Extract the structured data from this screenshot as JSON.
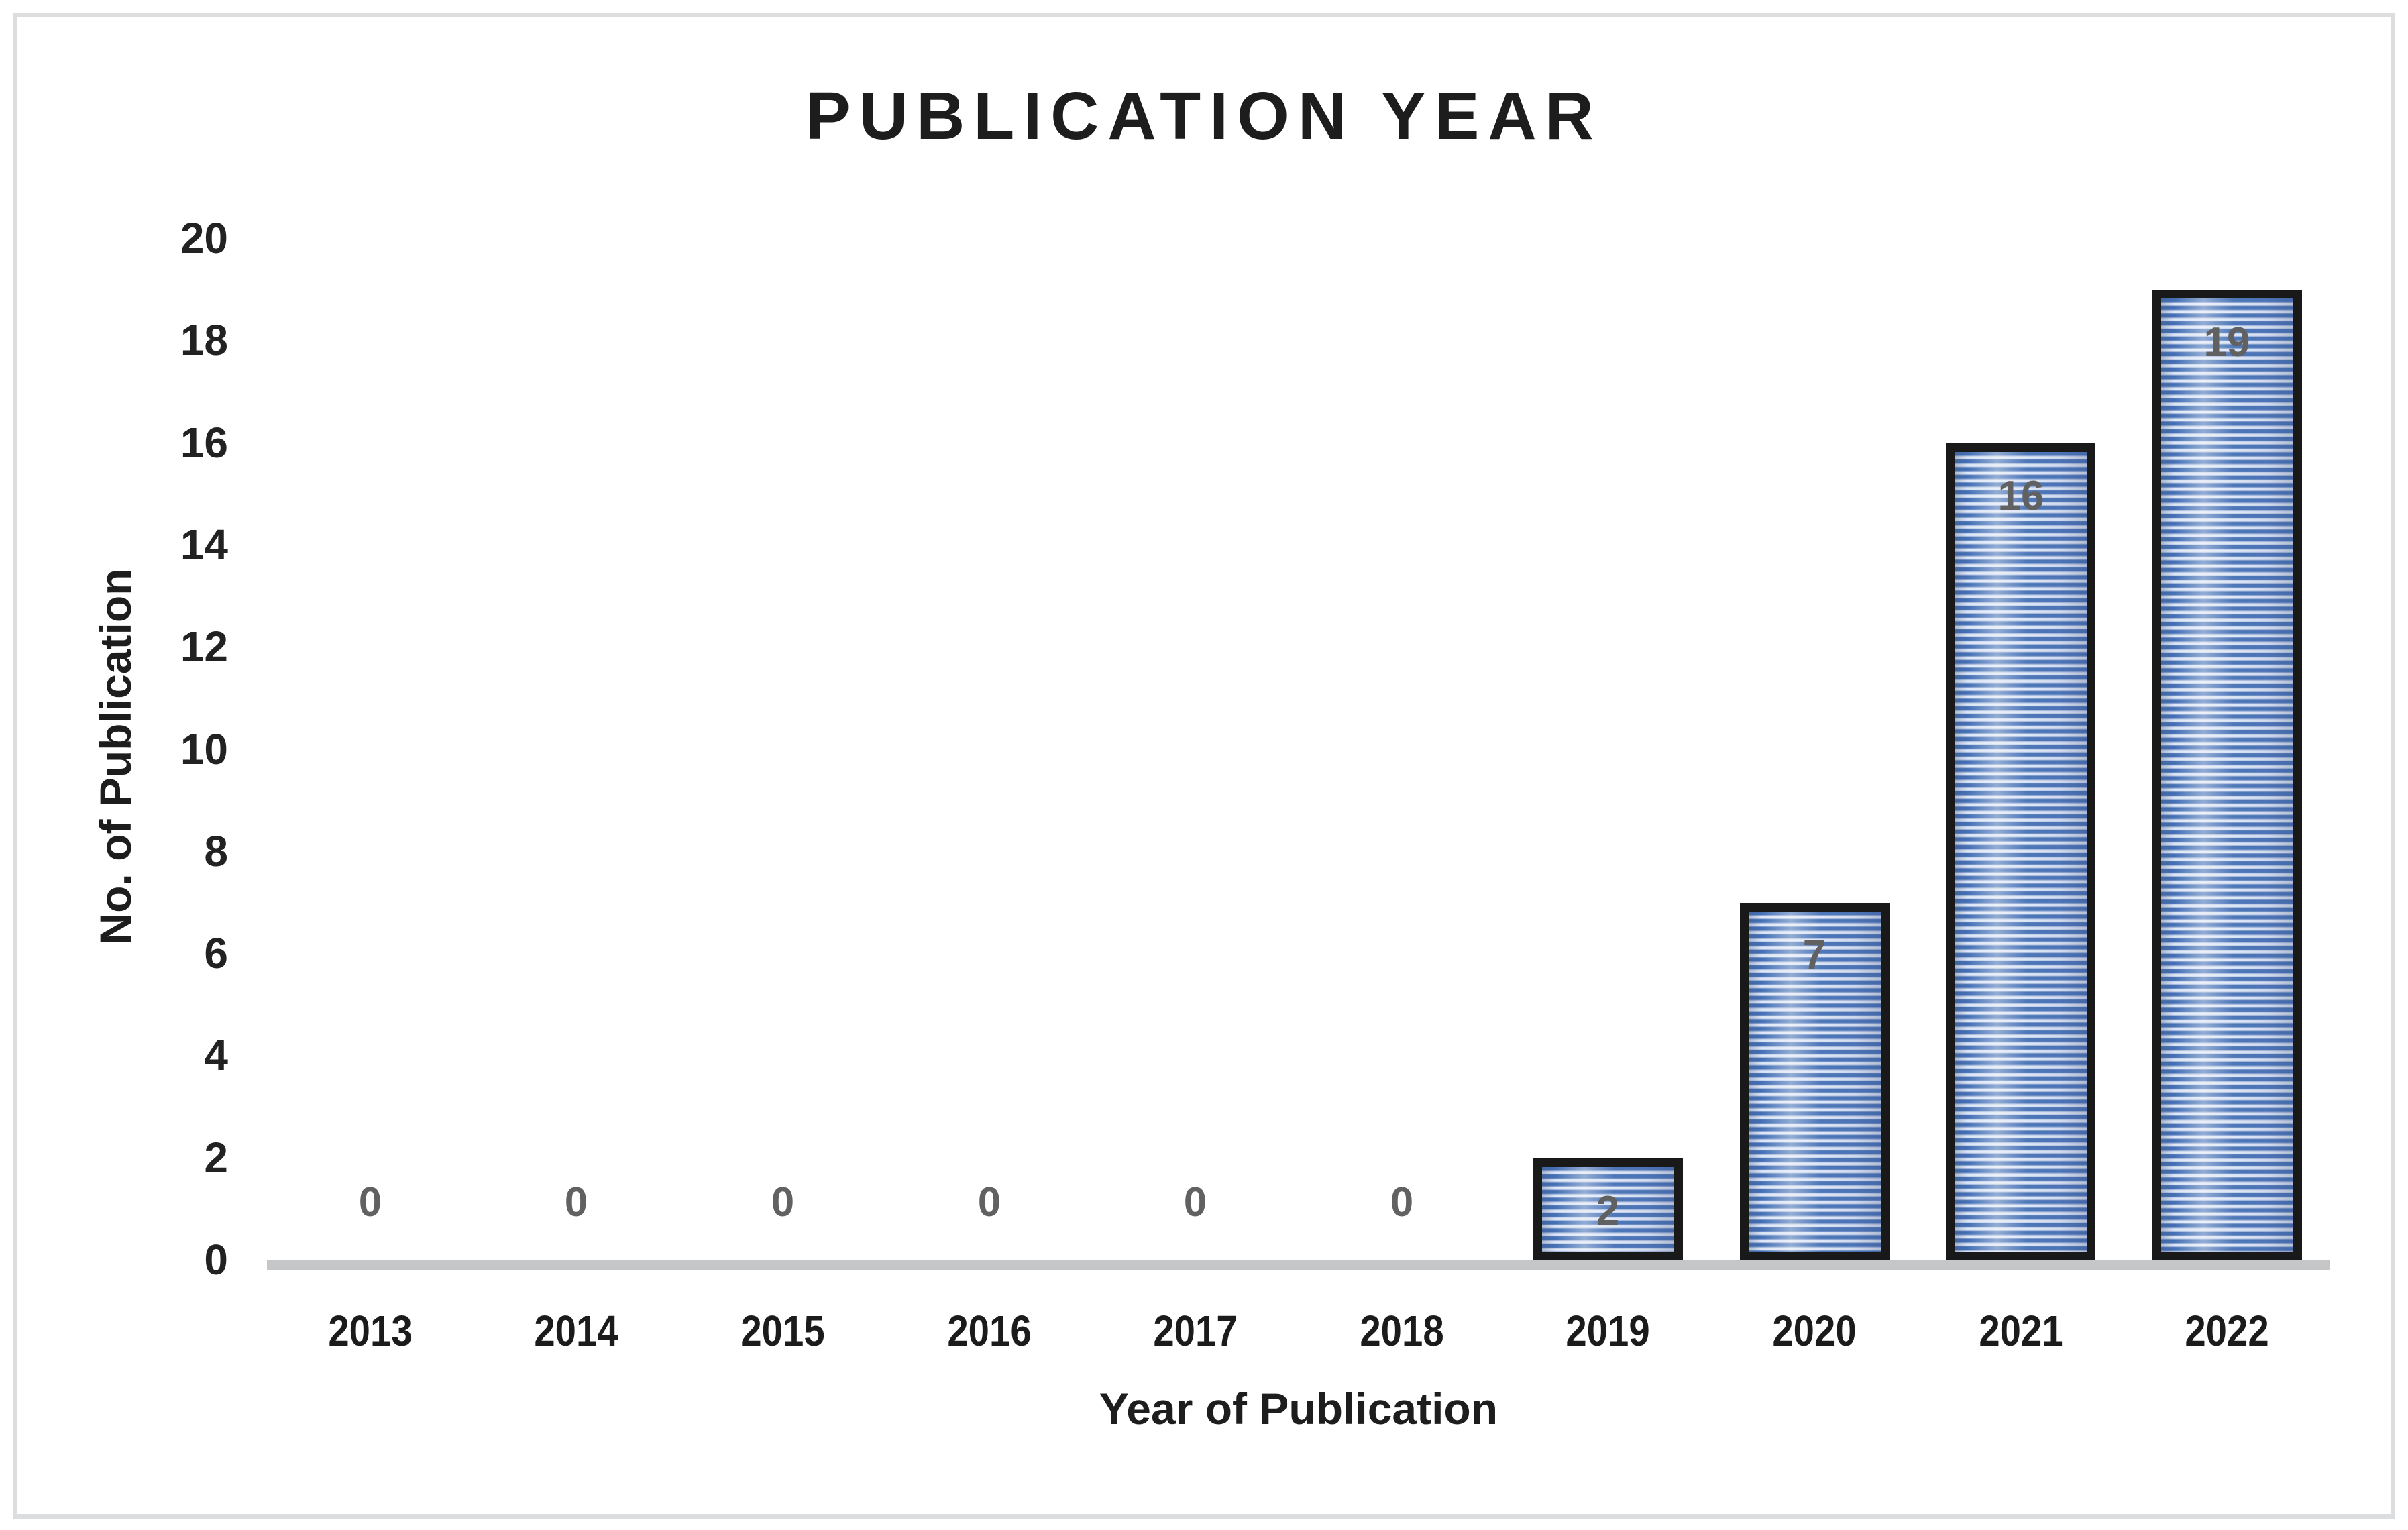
{
  "chart_data": {
    "type": "bar",
    "title": "PUBLICATION YEAR",
    "xlabel": "Year of Publication",
    "ylabel": "No. of Publication",
    "categories": [
      "2013",
      "2014",
      "2015",
      "2016",
      "2017",
      "2018",
      "2019",
      "2020",
      "2021",
      "2022"
    ],
    "values": [
      0,
      0,
      0,
      0,
      0,
      0,
      2,
      7,
      16,
      19
    ],
    "ylim": [
      0,
      20
    ],
    "yticks": [
      0,
      2,
      4,
      6,
      8,
      10,
      12,
      14,
      16,
      18,
      20
    ],
    "grid": false,
    "legend_position": "none",
    "data_label_position": "inside-end",
    "colors": {
      "bar_stripe_dark": "#4470b5",
      "bar_stripe_mid": "#a8bbdf",
      "bar_stripe_light": "#dde6f5",
      "bar_border": "#191919",
      "data_label_gray": "#616161",
      "axis_line_gray": "#c5c6c8",
      "text_black": "#1d1d1d",
      "frame_border": "#dcdddf"
    }
  }
}
